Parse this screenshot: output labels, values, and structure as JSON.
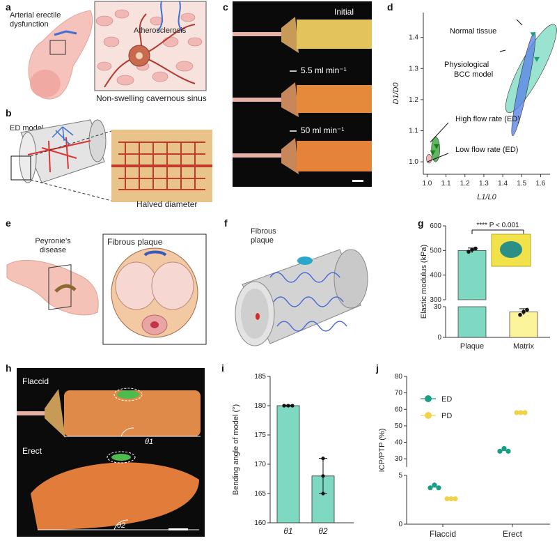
{
  "panel_labels": {
    "a": "a",
    "b": "b",
    "c": "c",
    "d": "d",
    "e": "e",
    "f": "f",
    "g": "g",
    "h": "h",
    "i": "i",
    "j": "j"
  },
  "panel_a": {
    "label_ed": "Arterial erectile dysfunction",
    "label_ath": "Atherosclerosis",
    "caption": "Non-swelling cavernous sinus"
  },
  "panel_b": {
    "label_model": "ED model",
    "label_halved": "Halved diameter"
  },
  "panel_c": {
    "label_initial": "Initial",
    "label_flow1": "5.5 ml min⁻¹",
    "label_flow2": "50 ml min⁻¹"
  },
  "panel_e": {
    "label_disease": "Peyronie’s disease",
    "label_plaque": "Fibrous plaque"
  },
  "panel_f": {
    "label_plaque": "Fibrous plaque"
  },
  "panel_h": {
    "label_flaccid": "Flaccid",
    "label_erect": "Erect",
    "theta1": "θ1",
    "theta2": "θ2"
  },
  "chart_data": [
    {
      "id": "d",
      "type": "scatter",
      "xlabel": "L1/L0",
      "ylabel": "D1/D0",
      "xlim": [
        0.98,
        1.65
      ],
      "ylim": [
        0.96,
        1.48
      ],
      "xticks": [
        "1.0",
        "1.1",
        "1.2",
        "1.3",
        "1.4",
        "1.5",
        "1.6"
      ],
      "yticks": [
        "1.0",
        "1.1",
        "1.2",
        "1.3",
        "1.4"
      ],
      "ellipses": [
        {
          "name": "Normal tissue",
          "color": "#7fdcc4",
          "cx": 1.55,
          "cy": 1.3,
          "rx": 0.06,
          "ry": 0.16,
          "rot": 28
        },
        {
          "name": "Physiological BCC model",
          "color": "#5b86e5",
          "cx": 1.51,
          "cy": 1.25,
          "rx": 0.025,
          "ry": 0.17,
          "rot": 12
        },
        {
          "name": "High flow rate (ED)",
          "color": "#3aa53a",
          "cx": 1.045,
          "cy": 1.04,
          "rx": 0.022,
          "ry": 0.04,
          "rot": 0
        },
        {
          "name": "Low flow rate (ED)",
          "color": "#f2a6a6",
          "cx": 1.01,
          "cy": 1.01,
          "rx": 0.014,
          "ry": 0.014,
          "rot": 0
        }
      ],
      "points": [
        {
          "x": 1.56,
          "y": 1.41,
          "color": "#1a9e7f"
        },
        {
          "x": 1.58,
          "y": 1.33,
          "color": "#1a9e7f"
        },
        {
          "x": 1.03,
          "y": 1.03,
          "color": "#1a7f1a"
        },
        {
          "x": 1.05,
          "y": 1.05,
          "color": "#1a7f1a"
        }
      ],
      "annotations": [
        {
          "text": "Normal tissue"
        },
        {
          "text": "Physiological"
        },
        {
          "text": "BCC model"
        },
        {
          "text": "High flow rate (ED)"
        },
        {
          "text": "Low flow rate (ED)"
        }
      ]
    },
    {
      "id": "g",
      "type": "bar",
      "ylabel": "Elastic modulus (kPa)",
      "categories": [
        "Plaque",
        "Matrix"
      ],
      "values": [
        500,
        25
      ],
      "errors": [
        10,
        3
      ],
      "points": [
        [
          495,
          503,
          508
        ],
        [
          22,
          25,
          27
        ]
      ],
      "colors": [
        "#7fd8c2",
        "#fbf49a"
      ],
      "yticks_upper": [
        "300",
        "400",
        "500",
        "600"
      ],
      "yticks_lower": [
        "0",
        "30"
      ],
      "significance": "**** P < 0.001"
    },
    {
      "id": "i",
      "type": "bar",
      "ylabel": "Bending angle of model (°)",
      "categories": [
        "θ1",
        "θ2"
      ],
      "values": [
        180,
        168
      ],
      "errors": [
        0.1,
        3
      ],
      "points": [
        [
          180,
          180,
          180
        ],
        [
          165,
          168,
          171
        ]
      ],
      "ylim": [
        160,
        185
      ],
      "yticks": [
        "160",
        "165",
        "170",
        "175",
        "180",
        "185"
      ],
      "color": "#7fd8c2"
    },
    {
      "id": "j",
      "type": "scatter",
      "ylabel": "ICP/PTP (%)",
      "categories": [
        "Flaccid",
        "Erect"
      ],
      "series": [
        {
          "name": "ED",
          "color": "#1a9e86",
          "values": [
            3.8,
            35.0
          ]
        },
        {
          "name": "PD",
          "color": "#f2d24a",
          "values": [
            2.6,
            58.0
          ]
        }
      ],
      "yticks_upper": [
        "30",
        "40",
        "50",
        "60",
        "70",
        "80"
      ],
      "yticks_lower": [
        "0",
        "5"
      ]
    }
  ]
}
